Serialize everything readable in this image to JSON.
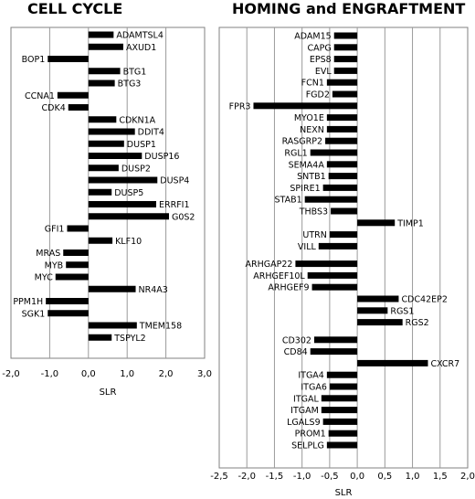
{
  "chart_data": [
    {
      "type": "bar",
      "orientation": "horizontal",
      "title": "CELL CYCLE",
      "xlabel": "SLR",
      "xlim": [
        -2.0,
        3.0
      ],
      "xticks": [
        "-2,0",
        "-1,0",
        "0,0",
        "1,0",
        "2,0",
        "3,0"
      ],
      "grid": true,
      "bar_color": "#000000",
      "categories": [
        "ADAMTSL4",
        "AXUD1",
        "BOP1",
        "BTG1",
        "BTG3",
        "CCNA1",
        "CDK4",
        "CDKN1A",
        "DDIT4",
        "DUSP1",
        "DUSP16",
        "DUSP2",
        "DUSP4",
        "DUSP5",
        "ERRFI1",
        "G0S2",
        "GFI1",
        "KLF10",
        "MRAS",
        "MYB",
        "MYC",
        "NR4A3",
        "PPM1H",
        "SGK1",
        "TMEM158",
        "TSPYL2"
      ],
      "values": [
        0.65,
        0.9,
        -1.05,
        0.82,
        0.68,
        -0.8,
        -0.52,
        0.72,
        1.2,
        0.92,
        1.38,
        0.78,
        1.78,
        0.6,
        1.75,
        2.08,
        -0.55,
        0.62,
        -0.65,
        -0.58,
        -0.85,
        1.22,
        -1.1,
        -1.05,
        1.25,
        0.6
      ]
    },
    {
      "type": "bar",
      "orientation": "horizontal",
      "title": "HOMING and ENGRAFTMENT",
      "xlabel": "SLR",
      "xlim": [
        -2.5,
        2.0
      ],
      "xticks": [
        "-2,5",
        "-2,0",
        "-1,5",
        "-1,0",
        "-0,5",
        "0,0",
        "0,5",
        "1,0",
        "1,5",
        "2,0"
      ],
      "grid": true,
      "bar_color": "#000000",
      "categories": [
        "ADAM15",
        "CAPG",
        "EPS8",
        "EVL",
        "FCN1",
        "FGD2",
        "FPR3",
        "MYO1E",
        "NEXN",
        "RASGRP2",
        "RGL1",
        "SEMA4A",
        "SNTB1",
        "SPIRE1",
        "STAB1",
        "THBS3",
        "TIMP1",
        "UTRN",
        "VILL",
        "ARHGAP22",
        "ARHGEF10L",
        "ARHGEF9",
        "CDC42EP2",
        "RGS1",
        "RGS2",
        "CD302",
        "CD84",
        "CXCR7",
        "ITGA4",
        "ITGA6",
        "ITGAL",
        "ITGAM",
        "LGALS9",
        "PROM1",
        "SELPLG"
      ],
      "rows": [
        0,
        1,
        2,
        3,
        4,
        5,
        6,
        7,
        8,
        9,
        10,
        11,
        12,
        13,
        14,
        15,
        16,
        17,
        18,
        19.5,
        20.5,
        21.5,
        22.5,
        23.5,
        24.5,
        26,
        27,
        28,
        29,
        30,
        31,
        32,
        33,
        34,
        35
      ],
      "values": [
        -0.42,
        -0.42,
        -0.42,
        -0.42,
        -0.55,
        -0.45,
        -1.88,
        -0.55,
        -0.55,
        -0.58,
        -0.85,
        -0.55,
        -0.52,
        -0.62,
        -0.95,
        -0.48,
        0.68,
        -0.5,
        -0.7,
        -1.12,
        -0.9,
        -0.82,
        0.75,
        0.55,
        0.82,
        -0.78,
        -0.85,
        1.28,
        -0.55,
        -0.5,
        -0.65,
        -0.65,
        -0.62,
        -0.52,
        -0.55
      ]
    }
  ]
}
